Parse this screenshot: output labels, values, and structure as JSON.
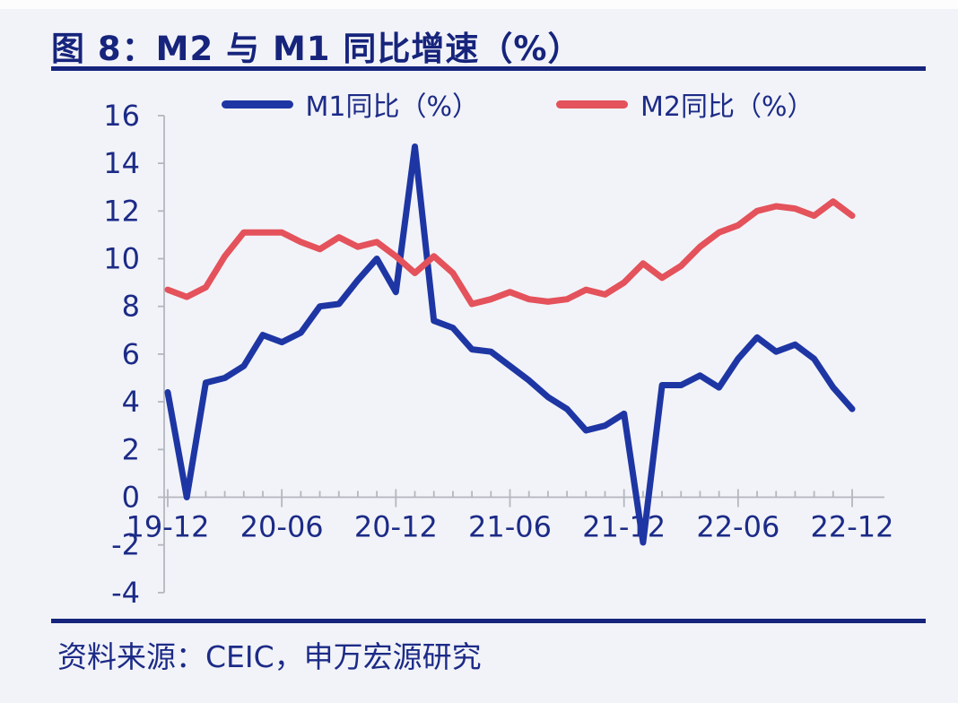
{
  "header": {
    "title": "图 8：M2 与 M1 同比增速（%）"
  },
  "footer": {
    "source": "资料来源：CEIC，申万宏源研究"
  },
  "theme": {
    "navy_text": "#1c2b87",
    "rule_color": "#16247c",
    "axis_color": "#b4b7bf",
    "background": "#f2f3f8"
  },
  "chart_data": {
    "type": "line",
    "title": "图 8：M2 与 M1 同比增速（%）",
    "xlabel": "",
    "ylabel": "",
    "grid": false,
    "legend_position": "top",
    "ylim": [
      -4,
      16
    ],
    "y_ticks": [
      16,
      14,
      12,
      10,
      8,
      6,
      4,
      2,
      0,
      -2,
      -4
    ],
    "x": [
      "19-12",
      "20-01",
      "20-02",
      "20-03",
      "20-04",
      "20-05",
      "20-06",
      "20-07",
      "20-08",
      "20-09",
      "20-10",
      "20-11",
      "20-12",
      "21-01",
      "21-02",
      "21-03",
      "21-04",
      "21-05",
      "21-06",
      "21-07",
      "21-08",
      "21-09",
      "21-10",
      "21-11",
      "21-12",
      "22-01",
      "22-02",
      "22-03",
      "22-04",
      "22-05",
      "22-06",
      "22-07",
      "22-08",
      "22-09",
      "22-10",
      "22-11",
      "22-12"
    ],
    "x_tick_labels": [
      "19-12",
      "20-06",
      "20-12",
      "21-06",
      "21-12",
      "22-06",
      "22-12"
    ],
    "series": [
      {
        "id": "m1",
        "name": "M1同比（%）",
        "color": "#1e36a4",
        "values": [
          4.4,
          0.0,
          4.8,
          5.0,
          5.5,
          6.8,
          6.5,
          6.9,
          8.0,
          8.1,
          9.1,
          10.0,
          8.6,
          14.7,
          7.4,
          7.1,
          6.2,
          6.1,
          5.5,
          4.9,
          4.2,
          3.7,
          2.8,
          3.0,
          3.5,
          -1.9,
          4.7,
          4.7,
          5.1,
          4.6,
          5.8,
          6.7,
          6.1,
          6.4,
          5.8,
          4.6,
          3.7
        ]
      },
      {
        "id": "m2",
        "name": "M2同比（%）",
        "color": "#e4525b",
        "values": [
          8.7,
          8.4,
          8.8,
          10.1,
          11.1,
          11.1,
          11.1,
          10.7,
          10.4,
          10.9,
          10.5,
          10.7,
          10.1,
          9.4,
          10.1,
          9.4,
          8.1,
          8.3,
          8.6,
          8.3,
          8.2,
          8.3,
          8.7,
          8.5,
          9.0,
          9.8,
          9.2,
          9.7,
          10.5,
          11.1,
          11.4,
          12.0,
          12.2,
          12.1,
          11.8,
          12.4,
          11.8
        ]
      }
    ]
  }
}
